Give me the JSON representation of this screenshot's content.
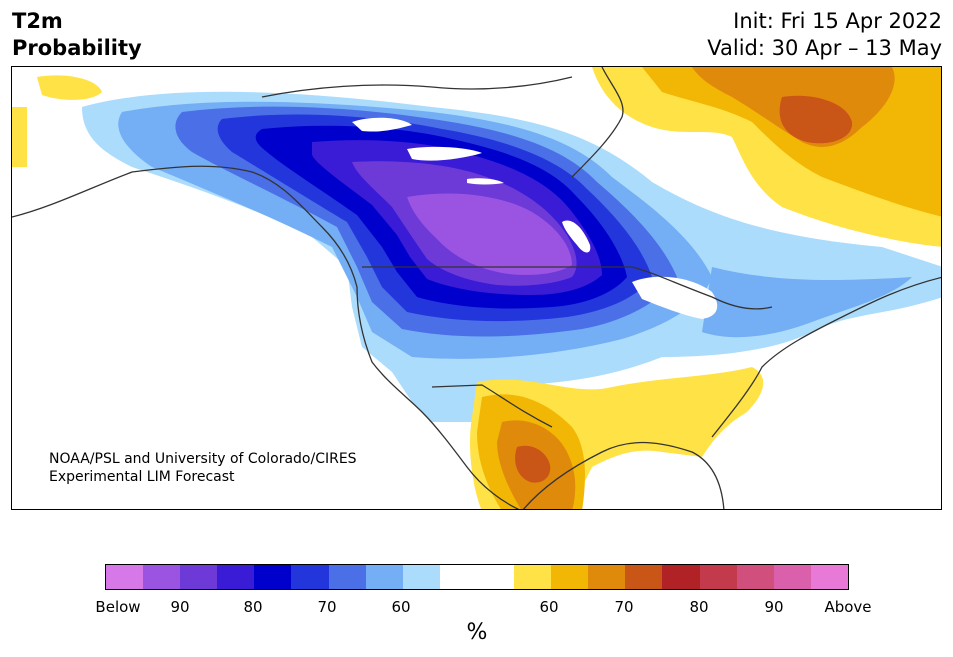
{
  "title": {
    "left_line1": "T2m",
    "left_line2": "Probability",
    "init": "Init: Fri 15 Apr 2022",
    "valid": "Valid: 30 Apr – 13 May"
  },
  "credit": {
    "line1": "NOAA/PSL and University of Colorado/CIRES",
    "line2": "Experimental LIM Forecast"
  },
  "colorbar": {
    "colors": [
      "#d678e8",
      "#9b54e2",
      "#6d3ad8",
      "#3a1bd6",
      "#0000cc",
      "#2236dc",
      "#4a6fe6",
      "#74aef4",
      "#acdcfc",
      "#ffffff",
      "#ffffff",
      "#ffe245",
      "#f2b705",
      "#e08a0c",
      "#c95517",
      "#b02226",
      "#c23a4c",
      "#d04f7c",
      "#da60ac",
      "#e879d6"
    ],
    "tick_labels": [
      "Below",
      "90",
      "80",
      "70",
      "60",
      "60",
      "70",
      "80",
      "90",
      "Above"
    ],
    "unit": "%"
  },
  "map": {
    "land_color": "#ffffff",
    "water_color": "#ffffff",
    "border_color": "#333333"
  }
}
